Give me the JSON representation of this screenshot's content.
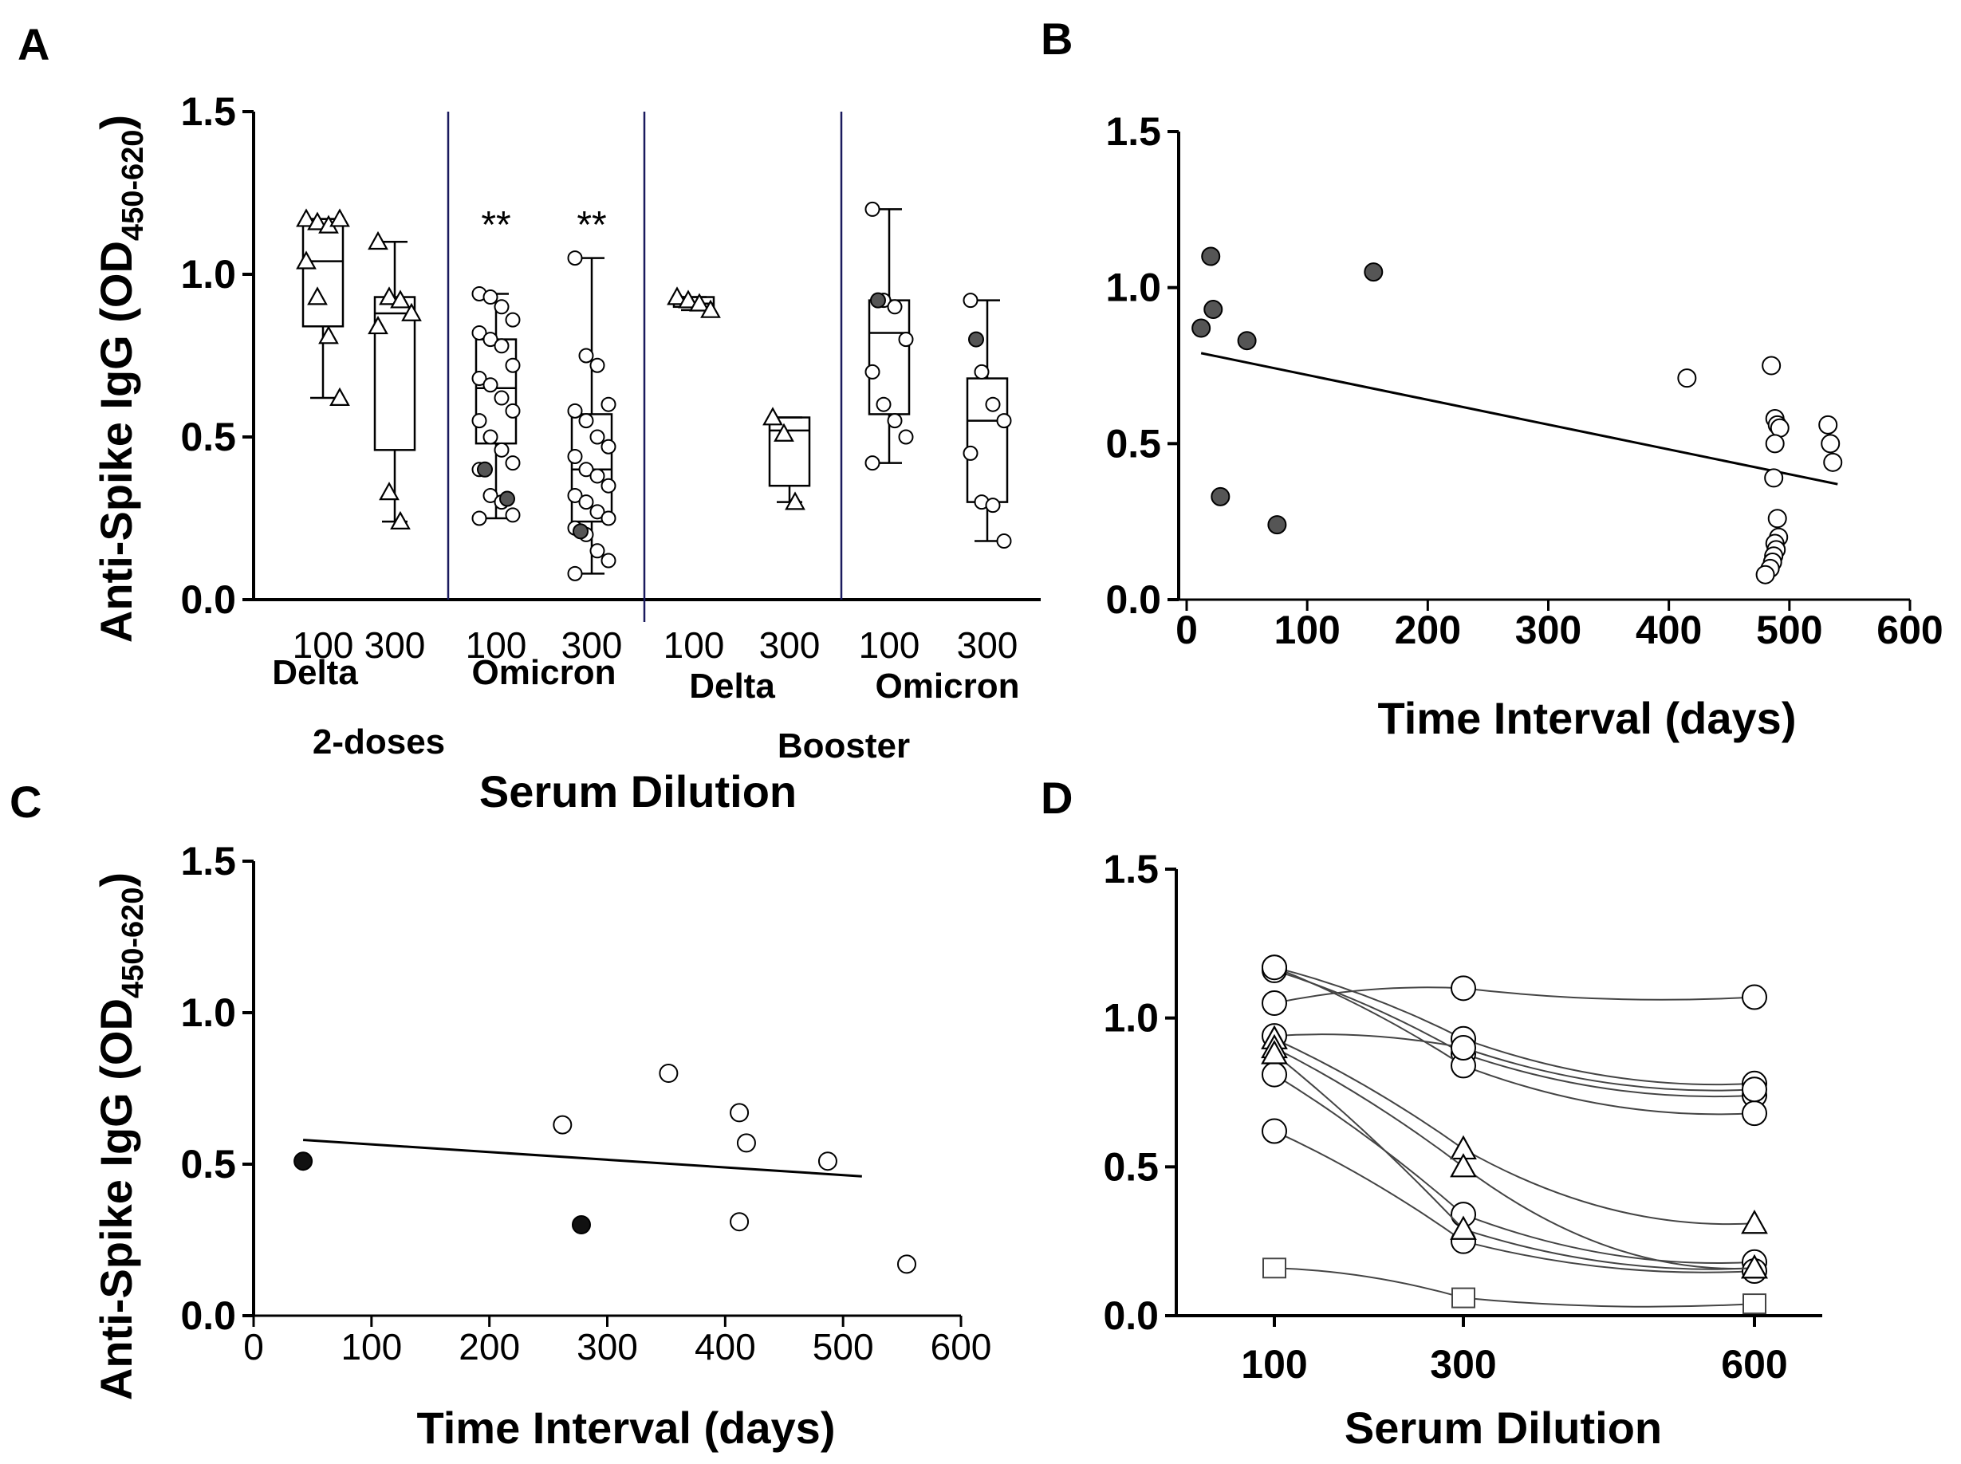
{
  "panels": {
    "A": {
      "letter": "A"
    },
    "B": {
      "letter": "B"
    },
    "C": {
      "letter": "C"
    },
    "D": {
      "letter": "D"
    }
  },
  "labels": {
    "ylabel_main": "Anti-Spike IgG (OD",
    "ylabel_sub": "450-620",
    "ylabel_close": ")",
    "a_xlabel": "Serum Dilution",
    "a_group_2doses": "2-doses",
    "a_group_booster": "Booster",
    "time_xlabel": "Time Interval (days)",
    "d_xlabel": "Serum Dilution"
  },
  "chart_data": [
    {
      "panel": "A",
      "type": "box",
      "ylim": [
        0,
        1.5
      ],
      "yticks": [
        "0.0",
        "0.5",
        "1.0",
        "1.5"
      ],
      "groups": [
        {
          "name": "2-doses",
          "variants": [
            "Delta",
            "Omicron"
          ]
        },
        {
          "name": "Booster",
          "variants": [
            "Delta",
            "Omicron"
          ]
        }
      ],
      "boxes": [
        {
          "dilution": "100",
          "variant": "Delta",
          "group": "2-doses",
          "marker": "triangle",
          "min": 0.62,
          "q1": 0.84,
          "median": 1.04,
          "q3": 1.17,
          "max": 1.17,
          "points": [
            1.17,
            1.16,
            1.15,
            1.17,
            1.04,
            0.93,
            0.81,
            0.62
          ],
          "sig": ""
        },
        {
          "dilution": "300",
          "variant": "Delta",
          "group": "2-doses",
          "marker": "triangle",
          "min": 0.24,
          "q1": 0.46,
          "median": 0.88,
          "q3": 0.93,
          "max": 1.1,
          "points": [
            1.1,
            0.93,
            0.92,
            0.88,
            0.84,
            0.33,
            0.24
          ],
          "sig": ""
        },
        {
          "dilution": "100",
          "variant": "Omicron",
          "group": "2-doses",
          "marker": "circle",
          "min": 0.25,
          "q1": 0.48,
          "median": 0.65,
          "q3": 0.8,
          "max": 0.94,
          "points": [
            0.94,
            0.93,
            0.9,
            0.86,
            0.82,
            0.8,
            0.78,
            0.72,
            0.68,
            0.66,
            0.62,
            0.58,
            0.55,
            0.5,
            0.46,
            0.42,
            0.4,
            0.32,
            0.3,
            0.26,
            0.25
          ],
          "filled": [
            0.4,
            0.31
          ],
          "sig": "**"
        },
        {
          "dilution": "300",
          "variant": "Omicron",
          "group": "2-doses",
          "marker": "circle",
          "min": 0.08,
          "q1": 0.24,
          "median": 0.4,
          "q3": 0.57,
          "max": 1.05,
          "points": [
            1.05,
            0.75,
            0.72,
            0.6,
            0.58,
            0.55,
            0.5,
            0.47,
            0.44,
            0.4,
            0.38,
            0.35,
            0.32,
            0.3,
            0.27,
            0.25,
            0.22,
            0.2,
            0.15,
            0.12,
            0.08
          ],
          "filled": [
            0.21
          ],
          "sig": "**"
        },
        {
          "dilution": "100",
          "variant": "Delta",
          "group": "Booster",
          "marker": "triangle",
          "min": 0.89,
          "q1": 0.9,
          "median": 0.91,
          "q3": 0.93,
          "max": 0.93,
          "points": [
            0.93,
            0.92,
            0.91,
            0.89
          ],
          "sig": ""
        },
        {
          "dilution": "300",
          "variant": "Delta",
          "group": "Booster",
          "marker": "triangle",
          "min": 0.3,
          "q1": 0.35,
          "median": 0.52,
          "q3": 0.56,
          "max": 0.56,
          "points": [
            0.56,
            0.51,
            0.3
          ],
          "sig": ""
        },
        {
          "dilution": "100",
          "variant": "Omicron",
          "group": "Booster",
          "marker": "circle",
          "min": 0.42,
          "q1": 0.57,
          "median": 0.82,
          "q3": 0.92,
          "max": 1.2,
          "points": [
            1.2,
            0.92,
            0.9,
            0.8,
            0.7,
            0.6,
            0.55,
            0.5,
            0.42
          ],
          "filled": [
            0.92
          ],
          "sig": ""
        },
        {
          "dilution": "300",
          "variant": "Omicron",
          "group": "Booster",
          "marker": "circle",
          "min": 0.18,
          "q1": 0.3,
          "median": 0.55,
          "q3": 0.68,
          "max": 0.92,
          "points": [
            0.92,
            0.7,
            0.6,
            0.55,
            0.45,
            0.3,
            0.29,
            0.18
          ],
          "filled": [
            0.8
          ],
          "sig": ""
        }
      ]
    },
    {
      "panel": "B",
      "type": "scatter",
      "xlim": [
        0,
        600
      ],
      "ylim": [
        0,
        1.5
      ],
      "xticks": [
        "0",
        "100",
        "200",
        "300",
        "400",
        "500",
        "600"
      ],
      "yticks": [
        "0.0",
        "0.5",
        "1.0",
        "1.5"
      ],
      "series": [
        {
          "fill": "dark",
          "x": [
            12,
            20,
            22,
            28,
            50,
            75,
            155
          ],
          "y": [
            0.87,
            1.1,
            0.93,
            0.33,
            0.83,
            0.24,
            1.05
          ]
        },
        {
          "fill": "open",
          "x": [
            415,
            485,
            488,
            490,
            492,
            488,
            487,
            490,
            491,
            488,
            489,
            487,
            486,
            484,
            480,
            532,
            534,
            536
          ],
          "y": [
            0.71,
            0.75,
            0.58,
            0.56,
            0.55,
            0.5,
            0.39,
            0.26,
            0.2,
            0.18,
            0.16,
            0.14,
            0.12,
            0.1,
            0.08,
            0.56,
            0.5,
            0.44
          ]
        }
      ],
      "fit": {
        "x": [
          12,
          540
        ],
        "y": [
          0.79,
          0.37
        ]
      }
    },
    {
      "panel": "C",
      "type": "scatter",
      "xlim": [
        0,
        600
      ],
      "ylim": [
        0,
        1.5
      ],
      "xticks": [
        "0",
        "100",
        "200",
        "300",
        "400",
        "500",
        "600"
      ],
      "yticks": [
        "0.0",
        "0.5",
        "1.0",
        "1.5"
      ],
      "series": [
        {
          "fill": "black",
          "x": [
            42,
            278
          ],
          "y": [
            0.51,
            0.3
          ]
        },
        {
          "fill": "open",
          "x": [
            262,
            352,
            412,
            418,
            487,
            412,
            554
          ],
          "y": [
            0.63,
            0.8,
            0.67,
            0.57,
            0.51,
            0.31,
            0.17
          ]
        }
      ],
      "fit": {
        "x": [
          42,
          516
        ],
        "y": [
          0.58,
          0.46
        ]
      }
    },
    {
      "panel": "D",
      "type": "line",
      "x": [
        100,
        300,
        600
      ],
      "xticks": [
        "100",
        "300",
        "600"
      ],
      "yticks": [
        "0.0",
        "0.5",
        "1.0",
        "1.5"
      ],
      "ylim": [
        0,
        1.5
      ],
      "series": [
        {
          "marker": "circle",
          "values": [
            1.17,
            0.93,
            0.78
          ]
        },
        {
          "marker": "circle",
          "values": [
            1.16,
            0.88,
            0.74
          ]
        },
        {
          "marker": "circle",
          "values": [
            1.17,
            0.84,
            0.68
          ]
        },
        {
          "marker": "circle",
          "values": [
            1.05,
            1.1,
            1.07
          ]
        },
        {
          "marker": "circle",
          "values": [
            0.94,
            0.9,
            0.76
          ]
        },
        {
          "marker": "circle",
          "values": [
            0.81,
            0.34,
            0.18
          ]
        },
        {
          "marker": "circle",
          "values": [
            0.62,
            0.25,
            0.15
          ]
        },
        {
          "marker": "triangle",
          "values": [
            0.93,
            0.56,
            0.31
          ]
        },
        {
          "marker": "triangle",
          "values": [
            0.9,
            0.5,
            0.16
          ]
        },
        {
          "marker": "triangle",
          "values": [
            0.88,
            0.29,
            0.16
          ]
        },
        {
          "marker": "square",
          "values": [
            0.16,
            0.06,
            0.04
          ]
        }
      ]
    }
  ]
}
